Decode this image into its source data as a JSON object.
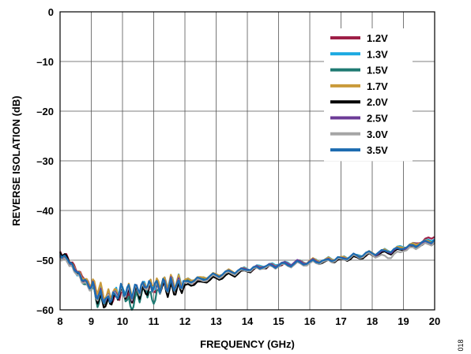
{
  "figure_id": "018",
  "chart_data": {
    "type": "line",
    "title": "",
    "xlabel": "FREQUENCY (GHz)",
    "ylabel": "REVERSE ISOLATION (dB)",
    "xlim": [
      8,
      20
    ],
    "ylim": [
      -60,
      0
    ],
    "xticks": [
      8,
      9,
      10,
      11,
      12,
      13,
      14,
      15,
      16,
      17,
      18,
      19,
      20
    ],
    "yticks": [
      0,
      -10,
      -20,
      -30,
      -40,
      -50,
      -60
    ],
    "ytick_labels": [
      "0",
      "–10",
      "–20",
      "–30",
      "–40",
      "–50",
      "–60"
    ],
    "grid": true,
    "legend_position": "top-right",
    "x": [
      8.0,
      8.25,
      8.5,
      8.75,
      9.0,
      9.25,
      9.5,
      9.75,
      10.0,
      10.25,
      10.5,
      10.75,
      11.0,
      11.25,
      11.5,
      11.75,
      12.0,
      12.5,
      13.0,
      13.5,
      14.0,
      14.5,
      15.0,
      15.5,
      16.0,
      16.5,
      17.0,
      17.5,
      18.0,
      18.5,
      19.0,
      19.5,
      20.0
    ],
    "series": [
      {
        "name": "1.2V",
        "color": "#9e1f47",
        "values": [
          -48.2,
          -49.5,
          -51.8,
          -53.6,
          -55.3,
          -57.0,
          -57.8,
          -57.2,
          -56.4,
          -57.6,
          -56.9,
          -55.8,
          -56.3,
          -55.6,
          -55.2,
          -54.9,
          -54.5,
          -54.0,
          -53.2,
          -52.6,
          -52.1,
          -51.5,
          -51.2,
          -50.8,
          -50.3,
          -49.9,
          -49.6,
          -49.1,
          -48.8,
          -48.2,
          -47.6,
          -46.6,
          -45.3
        ]
      },
      {
        "name": "1.3V",
        "color": "#1ba9e1",
        "values": [
          -49.0,
          -50.1,
          -52.6,
          -54.0,
          -55.8,
          -56.4,
          -57.3,
          -56.0,
          -55.6,
          -56.2,
          -56.8,
          -55.2,
          -55.9,
          -55.0,
          -54.6,
          -54.2,
          -54.0,
          -53.5,
          -52.9,
          -52.3,
          -51.8,
          -51.3,
          -50.9,
          -50.6,
          -50.2,
          -49.8,
          -49.4,
          -48.9,
          -48.6,
          -48.1,
          -47.4,
          -46.8,
          -45.8
        ]
      },
      {
        "name": "1.5V",
        "color": "#1f7a72",
        "values": [
          -48.6,
          -49.8,
          -52.2,
          -54.8,
          -56.0,
          -58.6,
          -57.2,
          -56.6,
          -55.4,
          -59.2,
          -57.4,
          -56.2,
          -58.8,
          -55.5,
          -55.1,
          -54.8,
          -54.2,
          -53.8,
          -53.1,
          -52.5,
          -52.0,
          -51.6,
          -51.1,
          -50.7,
          -50.4,
          -50.0,
          -49.5,
          -49.1,
          -48.7,
          -48.3,
          -47.6,
          -46.9,
          -46.0
        ]
      },
      {
        "name": "1.7V",
        "color": "#c99a3a",
        "values": [
          -48.8,
          -50.2,
          -51.9,
          -53.8,
          -55.0,
          -55.6,
          -56.9,
          -55.8,
          -56.2,
          -55.9,
          -56.5,
          -55.4,
          -55.1,
          -54.9,
          -54.4,
          -54.1,
          -53.9,
          -53.4,
          -52.8,
          -52.2,
          -51.9,
          -51.4,
          -51.0,
          -50.6,
          -50.1,
          -49.8,
          -49.3,
          -49.0,
          -48.5,
          -48.2,
          -47.5,
          -46.7,
          -46.1
        ]
      },
      {
        "name": "2.0V",
        "color": "#000000",
        "values": [
          -48.4,
          -49.7,
          -52.4,
          -54.4,
          -55.6,
          -57.8,
          -58.5,
          -57.0,
          -56.0,
          -57.2,
          -56.6,
          -56.8,
          -55.7,
          -55.8,
          -56.1,
          -55.6,
          -55.0,
          -54.3,
          -53.6,
          -53.0,
          -52.3,
          -51.7,
          -51.3,
          -50.9,
          -50.5,
          -50.2,
          -49.8,
          -49.4,
          -49.0,
          -48.6,
          -48.0,
          -47.3,
          -46.5
        ]
      },
      {
        "name": "2.5V",
        "color": "#6c3b97",
        "values": [
          -49.2,
          -50.5,
          -52.0,
          -54.2,
          -55.4,
          -56.8,
          -57.6,
          -56.3,
          -55.8,
          -56.9,
          -56.1,
          -55.6,
          -55.9,
          -55.3,
          -54.8,
          -54.5,
          -54.3,
          -53.9,
          -53.0,
          -52.4,
          -51.9,
          -51.4,
          -51.0,
          -50.5,
          -50.2,
          -49.9,
          -49.5,
          -49.0,
          -48.7,
          -48.4,
          -47.8,
          -47.0,
          -46.3
        ]
      },
      {
        "name": "3.0V",
        "color": "#a5a5a5",
        "values": [
          -49.4,
          -50.6,
          -52.7,
          -54.6,
          -55.9,
          -57.1,
          -57.4,
          -56.5,
          -56.0,
          -56.7,
          -56.3,
          -55.9,
          -56.0,
          -55.4,
          -55.0,
          -54.7,
          -54.4,
          -54.0,
          -53.3,
          -52.7,
          -52.2,
          -51.7,
          -51.3,
          -50.9,
          -50.6,
          -50.1,
          -49.7,
          -49.2,
          -48.9,
          -49.6,
          -48.2,
          -47.4,
          -46.4
        ]
      },
      {
        "name": "3.5V",
        "color": "#1c6bb0",
        "values": [
          -48.9,
          -50.0,
          -52.3,
          -54.1,
          -55.5,
          -56.9,
          -57.5,
          -56.8,
          -55.7,
          -56.5,
          -56.0,
          -55.5,
          -55.6,
          -55.2,
          -54.9,
          -54.6,
          -54.2,
          -53.7,
          -53.0,
          -52.4,
          -52.0,
          -51.5,
          -51.1,
          -50.7,
          -50.3,
          -49.9,
          -49.5,
          -49.0,
          -48.6,
          -48.3,
          -47.7,
          -46.9,
          -45.9
        ]
      }
    ]
  }
}
